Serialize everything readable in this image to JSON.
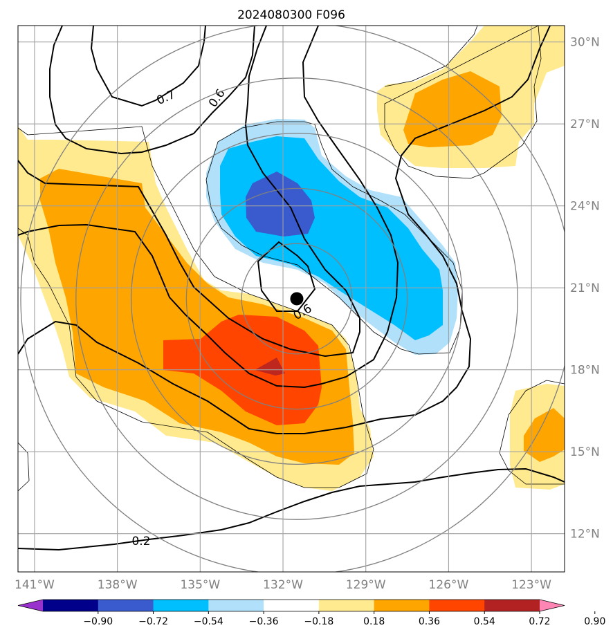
{
  "title": "2024080300 F096",
  "map": {
    "lon_range": [
      -141.6,
      -121.8
    ],
    "lat_range": [
      10.6,
      30.6
    ],
    "lon_ticks": [
      {
        "value": -141,
        "label": "141°W"
      },
      {
        "value": -138,
        "label": "138°W"
      },
      {
        "value": -135,
        "label": "135°W"
      },
      {
        "value": -132,
        "label": "132°W"
      },
      {
        "value": -129,
        "label": "129°W"
      },
      {
        "value": -126,
        "label": "126°W"
      },
      {
        "value": -123,
        "label": "123°W"
      }
    ],
    "lat_ticks": [
      {
        "value": 12,
        "label": "12°N"
      },
      {
        "value": 15,
        "label": "15°N"
      },
      {
        "value": 18,
        "label": "18°N"
      },
      {
        "value": 21,
        "label": "21°N"
      },
      {
        "value": 24,
        "label": "24°N"
      },
      {
        "value": 27,
        "label": "27°N"
      },
      {
        "value": 30,
        "label": "30°N"
      }
    ],
    "gridlines": true,
    "storm_center": {
      "lon": -131.5,
      "lat": 20.6
    },
    "range_rings_deg": [
      2,
      4,
      6,
      8,
      10
    ],
    "contour_labels": [
      {
        "text": "0.7",
        "lon": -137.2,
        "lat": 28.0
      },
      {
        "text": "0.6",
        "lon": -134.2,
        "lat": 28.1
      },
      {
        "text": "0.6",
        "lon": -131.0,
        "lat": 20.1
      },
      {
        "text": "0.2",
        "lon": -136.5,
        "lat": 12.0
      }
    ]
  },
  "colorbar": {
    "levels": [
      "−0.90",
      "−0.72",
      "−0.54",
      "−0.36",
      "−0.18",
      "0.18",
      "0.36",
      "0.54",
      "0.72",
      "0.90"
    ],
    "colors": [
      "#9932cc",
      "#00008b",
      "#3a5bcd",
      "#00bfff",
      "#b0e0fa",
      "#ffffff",
      "#ffea8f",
      "#ffa500",
      "#ff4500",
      "#b22222",
      "#ff85b4"
    ],
    "extend": "both"
  },
  "colors": {
    "light_yellow": "#ffea8f",
    "orange": "#ffa500",
    "red_orange": "#ff4500",
    "dark_red": "#b22222",
    "light_blue": "#b0e0fa",
    "cyan": "#00bfff",
    "royal_blue": "#3a5bcd"
  }
}
